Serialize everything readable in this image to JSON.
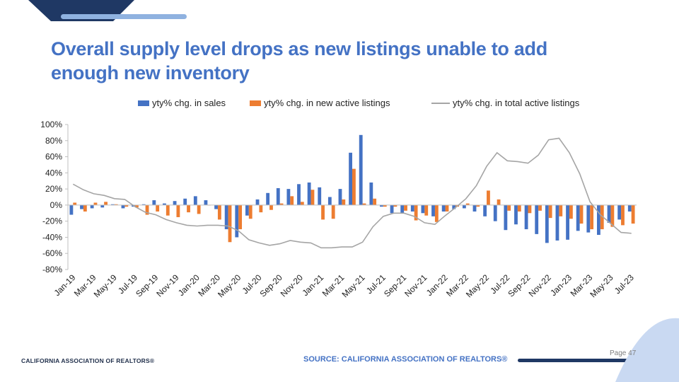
{
  "slide": {
    "title": "Overall supply level drops as new listings unable to add enough new inventory",
    "source": "SOURCE: CALIFORNIA ASSOCIATION OF REALTORS®",
    "page": "Page 47",
    "logo_text": "CALIFORNIA ASSOCIATION OF REALTORS®"
  },
  "colors": {
    "sales": "#4472c4",
    "new_listings": "#ed7d31",
    "total": "#a5a5a5",
    "accent": "#1f3864"
  },
  "chart_data": {
    "type": "bar",
    "title": "",
    "xlabel": "",
    "ylabel": "",
    "ylim": [
      -0.8,
      1.0
    ],
    "yticks": [
      -0.8,
      -0.6,
      -0.4,
      -0.2,
      0,
      0.2,
      0.4,
      0.6,
      0.8,
      1.0
    ],
    "ytick_labels": [
      "-80%",
      "-60%",
      "-40%",
      "-20%",
      "0%",
      "20%",
      "40%",
      "60%",
      "80%",
      "100%"
    ],
    "legend_position": "top",
    "categories": [
      "Jan-19",
      "Feb-19",
      "Mar-19",
      "Apr-19",
      "May-19",
      "Jun-19",
      "Jul-19",
      "Aug-19",
      "Sep-19",
      "Oct-19",
      "Nov-19",
      "Dec-19",
      "Jan-20",
      "Feb-20",
      "Mar-20",
      "Apr-20",
      "May-20",
      "Jun-20",
      "Jul-20",
      "Aug-20",
      "Sep-20",
      "Oct-20",
      "Nov-20",
      "Dec-20",
      "Jan-21",
      "Feb-21",
      "Mar-21",
      "Apr-21",
      "May-21",
      "Jun-21",
      "Jul-21",
      "Aug-21",
      "Sep-21",
      "Oct-21",
      "Nov-21",
      "Dec-21",
      "Jan-22",
      "Feb-22",
      "Mar-22",
      "Apr-22",
      "May-22",
      "Jun-22",
      "Jul-22",
      "Aug-22",
      "Sep-22",
      "Oct-22",
      "Nov-22",
      "Dec-22",
      "Jan-23",
      "Feb-23",
      "Mar-23",
      "Apr-23",
      "May-23",
      "Jun-23",
      "Jul-23"
    ],
    "series": [
      {
        "name": "yty% chg. in sales",
        "type": "bar",
        "values": [
          -0.12,
          -0.05,
          -0.04,
          -0.03,
          0.01,
          -0.04,
          -0.02,
          0.01,
          0.06,
          0.02,
          0.05,
          0.08,
          0.11,
          0.06,
          -0.05,
          -0.3,
          -0.4,
          -0.13,
          0.07,
          0.15,
          0.21,
          0.2,
          0.26,
          0.28,
          0.22,
          0.1,
          0.2,
          0.65,
          0.87,
          0.28,
          -0.02,
          -0.1,
          -0.1,
          -0.08,
          -0.1,
          -0.14,
          -0.08,
          -0.05,
          -0.04,
          -0.08,
          -0.14,
          -0.2,
          -0.31,
          -0.24,
          -0.3,
          -0.36,
          -0.47,
          -0.44,
          -0.43,
          -0.32,
          -0.34,
          -0.37,
          -0.22,
          -0.18,
          -0.08
        ]
      },
      {
        "name": "yty% chg. in new active listings",
        "type": "bar",
        "values": [
          0.03,
          -0.08,
          0.03,
          0.04,
          0.01,
          -0.02,
          -0.03,
          -0.12,
          -0.08,
          -0.13,
          -0.15,
          -0.09,
          -0.11,
          0.0,
          -0.18,
          -0.46,
          -0.3,
          -0.17,
          -0.09,
          -0.06,
          0.02,
          0.11,
          0.04,
          0.19,
          -0.18,
          -0.17,
          0.07,
          0.45,
          0.02,
          0.08,
          -0.02,
          -0.02,
          -0.07,
          -0.19,
          -0.13,
          -0.21,
          -0.08,
          -0.02,
          0.02,
          -0.02,
          0.18,
          0.07,
          -0.07,
          -0.08,
          -0.1,
          -0.07,
          -0.16,
          -0.14,
          -0.17,
          -0.23,
          -0.3,
          -0.3,
          -0.27,
          -0.25,
          -0.23
        ]
      },
      {
        "name": "yty% chg. in total active listings",
        "type": "line",
        "values": [
          0.26,
          0.19,
          0.14,
          0.12,
          0.08,
          0.07,
          -0.02,
          -0.09,
          -0.12,
          -0.18,
          -0.22,
          -0.25,
          -0.26,
          -0.25,
          -0.25,
          -0.26,
          -0.32,
          -0.43,
          -0.47,
          -0.5,
          -0.48,
          -0.44,
          -0.46,
          -0.47,
          -0.53,
          -0.53,
          -0.52,
          -0.52,
          -0.46,
          -0.27,
          -0.14,
          -0.1,
          -0.1,
          -0.14,
          -0.22,
          -0.24,
          -0.13,
          -0.03,
          0.08,
          0.24,
          0.48,
          0.65,
          0.55,
          0.54,
          0.52,
          0.62,
          0.81,
          0.83,
          0.65,
          0.39,
          0.04,
          -0.12,
          -0.23,
          -0.34,
          -0.35
        ]
      }
    ],
    "legend": [
      "yty% chg. in sales",
      "yty% chg. in new active listings",
      "yty% chg. in total active listings"
    ]
  }
}
